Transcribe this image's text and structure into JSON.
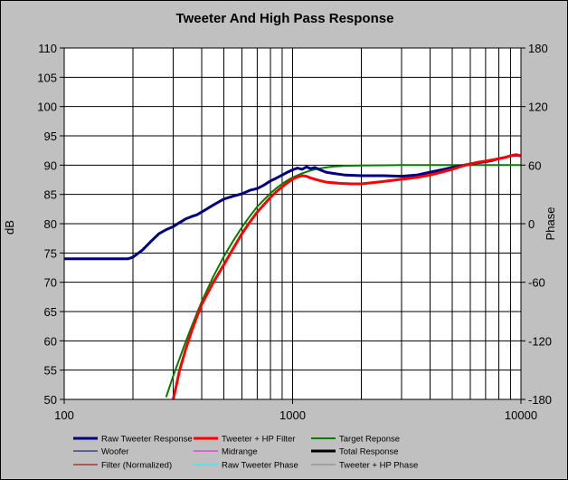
{
  "chart_data": {
    "type": "line",
    "title": "Tweeter  And High Pass Response",
    "xlabel": "",
    "ylabel": "dB",
    "y2label": "Phase",
    "x_scale": "log",
    "xlim": [
      100,
      10000
    ],
    "ylim": [
      50,
      110
    ],
    "y2lim": [
      -180,
      180
    ],
    "x_ticks": [
      100,
      1000,
      10000
    ],
    "x_tick_labels": [
      "100",
      "1000",
      "10000"
    ],
    "y_ticks": [
      50,
      55,
      60,
      65,
      70,
      75,
      80,
      85,
      90,
      95,
      100,
      105,
      110
    ],
    "y_tick_labels": [
      "50",
      "55",
      "60",
      "65",
      "70",
      "75",
      "80",
      "85",
      "90",
      "95",
      "100",
      "105",
      "110"
    ],
    "y2_ticks": [
      -180,
      -120,
      -60,
      0,
      60,
      120,
      180
    ],
    "y2_tick_labels": [
      "-180",
      "-120",
      "-60",
      "0",
      "60",
      "120",
      "180"
    ],
    "grid": true,
    "legend_position": "bottom",
    "series": [
      {
        "name": "Raw Tweeter Response",
        "color": "#000080",
        "width": 3,
        "x": [
          100,
          190,
          200,
          220,
          240,
          260,
          280,
          300,
          320,
          340,
          360,
          380,
          400,
          450,
          500,
          550,
          600,
          650,
          700,
          750,
          800,
          850,
          900,
          950,
          1000,
          1050,
          1100,
          1150,
          1200,
          1250,
          1300,
          1400,
          1500,
          1700,
          2000,
          2500,
          3000,
          3500,
          4000,
          4500,
          5000,
          5500,
          6000,
          6500,
          7000,
          7500,
          8000,
          8500,
          9000,
          9500,
          10000
        ],
        "y": [
          74,
          74,
          74.3,
          75.5,
          77,
          78.3,
          79,
          79.5,
          80.2,
          80.8,
          81.2,
          81.5,
          82,
          83.2,
          84.2,
          84.7,
          85.1,
          85.7,
          86,
          86.6,
          87.3,
          87.8,
          88.3,
          88.8,
          89.2,
          89.5,
          89.3,
          89.7,
          89.4,
          89.6,
          89.3,
          88.8,
          88.6,
          88.3,
          88.2,
          88.2,
          88.1,
          88.3,
          88.8,
          89.2,
          89.6,
          89.9,
          90.2,
          90.4,
          90.6,
          90.8,
          91.1,
          91.3,
          91.6,
          91.7,
          91.6
        ]
      },
      {
        "name": "Tweeter + HP Filter",
        "color": "#ff0000",
        "width": 3,
        "x": [
          300,
          310,
          320,
          340,
          360,
          380,
          400,
          450,
          500,
          550,
          600,
          650,
          700,
          750,
          800,
          850,
          900,
          950,
          1000,
          1050,
          1100,
          1150,
          1200,
          1300,
          1400,
          1500,
          1600,
          1800,
          2000,
          2500,
          3000,
          3500,
          4000,
          4500,
          5000,
          5500,
          6000,
          6500,
          7000,
          7500,
          8000,
          8500,
          9000,
          9500,
          10000
        ],
        "y": [
          50,
          52.5,
          55,
          58.5,
          61.5,
          64,
          66.2,
          70,
          73,
          75.8,
          78.3,
          80.3,
          82,
          83.3,
          84.5,
          85.5,
          86.3,
          87,
          87.6,
          88,
          88.2,
          88.1,
          87.8,
          87.4,
          87.1,
          87,
          86.9,
          86.8,
          86.8,
          87.2,
          87.6,
          87.9,
          88.3,
          88.8,
          89.3,
          89.8,
          90.2,
          90.5,
          90.7,
          90.9,
          91.1,
          91.3,
          91.6,
          91.8,
          91.6
        ]
      },
      {
        "name": "Target Reponse",
        "color": "#008000",
        "width": 2,
        "x": [
          280,
          300,
          320,
          340,
          360,
          380,
          400,
          450,
          500,
          550,
          600,
          650,
          700,
          750,
          800,
          850,
          900,
          950,
          1000,
          1100,
          1200,
          1300,
          1400,
          1500,
          1700,
          2000,
          2500,
          3000,
          4000,
          5000,
          7000,
          10000
        ],
        "y": [
          50.5,
          54,
          57,
          59.8,
          62.3,
          64.6,
          66.7,
          71,
          74.4,
          77.1,
          79.4,
          81.3,
          82.9,
          84.1,
          85.2,
          86.1,
          86.8,
          87.4,
          87.9,
          88.6,
          89.1,
          89.4,
          89.6,
          89.75,
          89.88,
          89.95,
          89.98,
          90,
          90,
          90,
          90,
          90
        ]
      },
      {
        "name": "Woofer",
        "color": "#000080",
        "width": 1,
        "x": [],
        "y": []
      },
      {
        "name": "Midrange",
        "color": "#ff00ff",
        "width": 1,
        "x": [],
        "y": []
      },
      {
        "name": "Total Response",
        "color": "#000000",
        "width": 3,
        "x": [],
        "y": []
      },
      {
        "name": "Filter (Normalized)",
        "color": "#800000",
        "width": 1,
        "x": [],
        "y": []
      },
      {
        "name": "Raw Tweeter Phase",
        "color": "#00ffff",
        "width": 1,
        "x": [],
        "y": []
      },
      {
        "name": "Tweeter + HP Phase",
        "color": "#808080",
        "width": 1,
        "x": [],
        "y": []
      }
    ]
  }
}
